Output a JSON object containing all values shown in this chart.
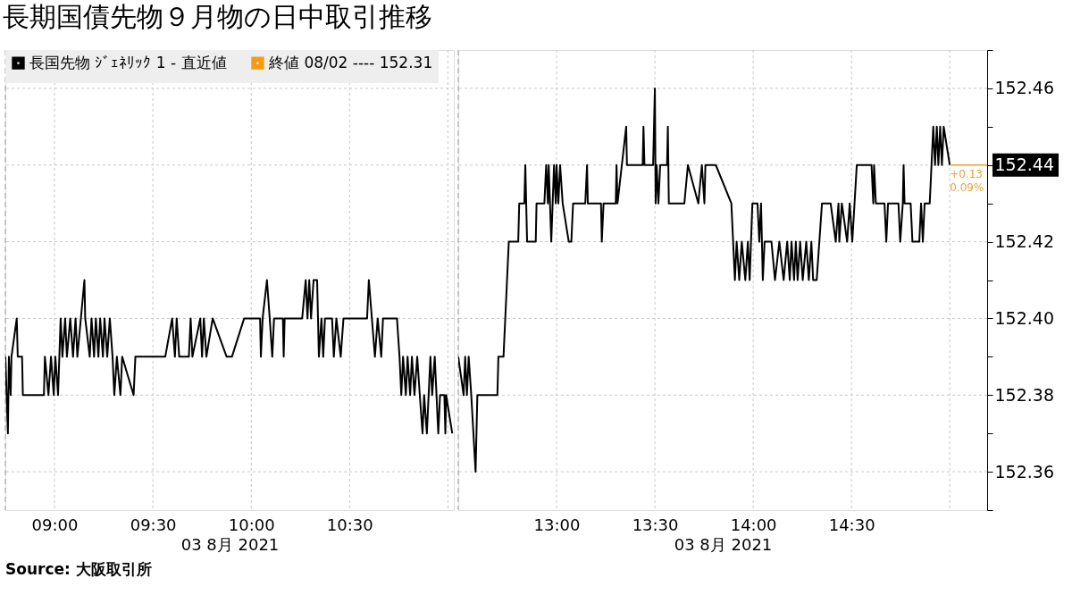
{
  "chart_data": [
    {
      "type": "line",
      "title": "長期国債先物９月物の日中取引推移",
      "xlabel": "03 8月 2021",
      "legend": "top left",
      "grid": true,
      "tick_labels": "x",
      "line_style": "solid",
      "marker": "none",
      "xlim": [
        8.75,
        11.03
      ],
      "xticks": [
        {
          "value": 9,
          "label": "09:00"
        },
        {
          "value": 9.5,
          "label": "09:30"
        },
        {
          "value": 10,
          "label": "10:00"
        },
        {
          "value": 10.5,
          "label": "10:30"
        },
        {
          "value": 11,
          "label": null
        }
      ],
      "ylim": [
        152.35,
        152.47
      ],
      "yticks": [
        152.36,
        152.38,
        152.4,
        152.42,
        152.44,
        152.46
      ],
      "ref_lines": [
        {
          "axis": "x",
          "value": 8.75,
          "line_style": "dashed",
          "color": "#aaaaaa"
        }
      ],
      "annotations": [
        "Source: 大阪取引所"
      ],
      "series": [
        {
          "name": "長国先物 ｼﾞｪﾈﾘｯｸ 1 - 直近値",
          "color": "#000000",
          "x": [
            8.75,
            8.763,
            8.768,
            8.777,
            8.781,
            8.808,
            8.813,
            8.835,
            8.839,
            8.946,
            8.951,
            8.969,
            8.982,
            8.996,
            9.004,
            9.018,
            9.031,
            9.04,
            9.054,
            9.063,
            9.08,
            9.094,
            9.107,
            9.116,
            9.134,
            9.152,
            9.156,
            9.179,
            9.188,
            9.201,
            9.21,
            9.223,
            9.232,
            9.246,
            9.254,
            9.268,
            9.281,
            9.295,
            9.304,
            9.317,
            9.335,
            9.344,
            9.402,
            9.411,
            9.563,
            9.598,
            9.612,
            9.621,
            9.634,
            9.683,
            9.692,
            9.701,
            9.741,
            9.75,
            9.759,
            9.772,
            9.804,
            9.875,
            9.902,
            9.964,
            10.045,
            10.049,
            10.058,
            10.08,
            10.094,
            10.107,
            10.116,
            10.161,
            10.165,
            10.17,
            10.259,
            10.277,
            10.286,
            10.295,
            10.304,
            10.317,
            10.335,
            10.344,
            10.357,
            10.366,
            10.375,
            10.411,
            10.42,
            10.433,
            10.455,
            10.469,
            10.589,
            10.598,
            10.629,
            10.643,
            10.661,
            10.67,
            10.741,
            10.754,
            10.763,
            10.772,
            10.786,
            10.795,
            10.808,
            10.817,
            10.83,
            10.844,
            10.857,
            10.871,
            10.879,
            10.893,
            10.911,
            10.92,
            10.933,
            10.951,
            10.96,
            10.982,
            10.987,
            10.991,
            11.022
          ],
          "values": [
            152.39,
            152.37,
            152.39,
            152.38,
            152.39,
            152.4,
            152.39,
            152.39,
            152.38,
            152.38,
            152.39,
            152.38,
            152.39,
            152.38,
            152.39,
            152.38,
            152.4,
            152.39,
            152.4,
            152.39,
            152.4,
            152.39,
            152.4,
            152.39,
            152.4,
            152.41,
            152.4,
            152.39,
            152.4,
            152.39,
            152.4,
            152.39,
            152.4,
            152.39,
            152.4,
            152.39,
            152.4,
            152.39,
            152.38,
            152.39,
            152.38,
            152.39,
            152.38,
            152.39,
            152.39,
            152.4,
            152.39,
            152.4,
            152.39,
            152.39,
            152.4,
            152.39,
            152.4,
            152.39,
            152.4,
            152.39,
            152.4,
            152.39,
            152.39,
            152.4,
            152.4,
            152.39,
            152.4,
            152.41,
            152.4,
            152.39,
            152.4,
            152.4,
            152.39,
            152.4,
            152.4,
            152.41,
            152.4,
            152.41,
            152.4,
            152.41,
            152.41,
            152.39,
            152.4,
            152.39,
            152.4,
            152.4,
            152.39,
            152.4,
            152.39,
            152.4,
            152.4,
            152.41,
            152.39,
            152.4,
            152.39,
            152.4,
            152.4,
            152.39,
            152.38,
            152.39,
            152.38,
            152.39,
            152.38,
            152.39,
            152.38,
            152.39,
            152.38,
            152.37,
            152.38,
            152.37,
            152.39,
            152.38,
            152.39,
            152.37,
            152.38,
            152.38,
            152.37,
            152.38,
            152.37
          ]
        },
        {
          "name": "終値 08/02 ---- 152.31",
          "color": "#f39c12"
        }
      ]
    },
    {
      "type": "line",
      "xlabel": "03 8月 2021",
      "grid": true,
      "line_style": "solid",
      "marker": "none",
      "xlim": [
        12.5,
        15.19
      ],
      "xticks": [
        {
          "value": 13,
          "label": "13:00"
        },
        {
          "value": 13.5,
          "label": "13:30"
        },
        {
          "value": 14,
          "label": "14:00"
        },
        {
          "value": 14.5,
          "label": "14:30"
        },
        {
          "value": 15,
          "label": null
        }
      ],
      "ylim": [
        152.35,
        152.47
      ],
      "yticks": [
        {
          "value": 152.35,
          "label": null
        },
        {
          "value": 152.36,
          "label": "152.36"
        },
        {
          "value": 152.37,
          "label": null
        },
        {
          "value": 152.38,
          "label": "152.38"
        },
        {
          "value": 152.39,
          "label": null
        },
        {
          "value": 152.4,
          "label": "152.40"
        },
        {
          "value": 152.41,
          "label": null
        },
        {
          "value": 152.42,
          "label": "152.42"
        },
        {
          "value": 152.43,
          "label": null
        },
        {
          "value": 152.44,
          "label": "152.44"
        },
        {
          "value": 152.45,
          "label": null
        },
        {
          "value": 152.46,
          "label": "152.46"
        },
        {
          "value": 152.47,
          "label": null
        }
      ],
      "ref_lines": [
        {
          "axis": "x",
          "value": 12.5,
          "line_style": "dashed",
          "color": "#aaaaaa"
        }
      ],
      "annotations": [
        {
          "text": "+0.13",
          "x": 15.0,
          "y": 152.44
        },
        {
          "text": "0.09%",
          "x": 15.0,
          "y": 152.44
        }
      ],
      "series": [
        {
          "color": "#000000",
          "x": [
            12.5,
            12.527,
            12.535,
            12.544,
            12.553,
            12.566,
            12.588,
            12.597,
            12.699,
            12.704,
            12.73,
            12.748,
            12.757,
            12.805,
            12.81,
            12.836,
            12.841,
            12.85,
            12.894,
            12.898,
            12.938,
            12.947,
            12.956,
            12.96,
            12.973,
            12.987,
            12.996,
            13.0,
            13.009,
            13.018,
            13.031,
            13.062,
            13.075,
            13.084,
            13.146,
            13.155,
            13.159,
            13.226,
            13.23,
            13.239,
            13.301,
            13.305,
            13.31,
            13.332,
            13.354,
            13.358,
            13.438,
            13.442,
            13.447,
            13.491,
            13.5,
            13.504,
            13.509,
            13.518,
            13.527,
            13.562,
            13.566,
            13.571,
            13.65,
            13.668,
            13.721,
            13.739,
            13.752,
            13.757,
            13.81,
            13.889,
            13.898,
            13.907,
            13.916,
            13.929,
            13.942,
            13.96,
            13.973,
            13.982,
            13.996,
            14.022,
            14.031,
            14.04,
            14.049,
            14.058,
            14.093,
            14.111,
            14.133,
            14.155,
            14.173,
            14.186,
            14.195,
            14.208,
            14.217,
            14.226,
            14.239,
            14.252,
            14.27,
            14.283,
            14.296,
            14.305,
            14.323,
            14.35,
            14.394,
            14.42,
            14.434,
            14.438,
            14.451,
            14.478,
            14.491,
            14.504,
            14.527,
            14.602,
            14.611,
            14.615,
            14.624,
            14.668,
            14.677,
            14.686,
            14.739,
            14.748,
            14.761,
            14.765,
            14.77,
            14.801,
            14.81,
            14.845,
            14.854,
            14.863,
            14.872,
            14.898,
            14.907,
            14.916,
            14.925,
            14.934,
            14.942,
            14.951,
            14.96,
            14.969,
            15.0
          ],
          "values": [
            152.39,
            152.38,
            152.39,
            152.38,
            152.39,
            152.38,
            152.36,
            152.38,
            152.38,
            152.39,
            152.39,
            152.41,
            152.42,
            152.42,
            152.43,
            152.43,
            152.44,
            152.42,
            152.42,
            152.43,
            152.43,
            152.44,
            152.43,
            152.44,
            152.42,
            152.44,
            152.43,
            152.44,
            152.43,
            152.44,
            152.43,
            152.42,
            152.42,
            152.43,
            152.43,
            152.44,
            152.43,
            152.43,
            152.42,
            152.43,
            152.43,
            152.44,
            152.43,
            152.44,
            152.45,
            152.44,
            152.44,
            152.45,
            152.44,
            152.44,
            152.46,
            152.43,
            152.44,
            152.43,
            152.44,
            152.44,
            152.45,
            152.43,
            152.43,
            152.44,
            152.43,
            152.44,
            152.43,
            152.44,
            152.44,
            152.43,
            152.42,
            152.41,
            152.42,
            152.41,
            152.42,
            152.41,
            152.42,
            152.41,
            152.43,
            152.43,
            152.42,
            152.43,
            152.41,
            152.42,
            152.42,
            152.41,
            152.42,
            152.41,
            152.42,
            152.41,
            152.42,
            152.41,
            152.42,
            152.41,
            152.42,
            152.41,
            152.42,
            152.41,
            152.42,
            152.41,
            152.41,
            152.43,
            152.43,
            152.42,
            152.43,
            152.42,
            152.43,
            152.42,
            152.43,
            152.42,
            152.44,
            152.44,
            152.43,
            152.44,
            152.43,
            152.43,
            152.42,
            152.43,
            152.43,
            152.42,
            152.43,
            152.44,
            152.43,
            152.43,
            152.42,
            152.42,
            152.43,
            152.42,
            152.43,
            152.43,
            152.44,
            152.45,
            152.44,
            152.45,
            152.44,
            152.45,
            152.44,
            152.45,
            152.44
          ]
        }
      ]
    }
  ]
}
